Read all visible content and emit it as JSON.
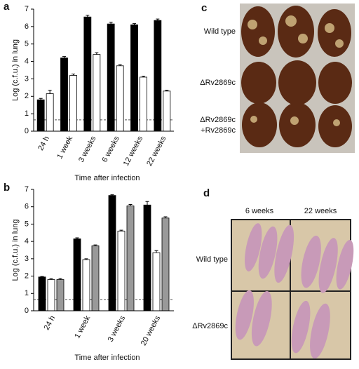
{
  "chart_data": [
    {
      "type": "bar",
      "panel": "a",
      "ylabel": "Log (c.f.u.) in lung",
      "xlabel": "Time after infection",
      "categories": [
        "24 h",
        "1 week",
        "3 weeks",
        "6 weeks",
        "12 weeks",
        "22 weeks"
      ],
      "series": [
        {
          "color": "#000000",
          "values": [
            1.8,
            4.2,
            6.55,
            6.15,
            6.1,
            6.35
          ],
          "errors": [
            0.08,
            0.08,
            0.1,
            0.1,
            0.07,
            0.08
          ]
        },
        {
          "color": "#ffffff",
          "values": [
            2.15,
            3.2,
            4.4,
            3.75,
            3.1,
            2.3
          ],
          "errors": [
            0.2,
            0.08,
            0.1,
            0.06,
            0.05,
            0.05
          ]
        }
      ],
      "threshold": 0.65,
      "ylim": [
        0,
        7
      ],
      "yticks": [
        0,
        1,
        2,
        3,
        4,
        5,
        6,
        7
      ]
    },
    {
      "type": "bar",
      "panel": "b",
      "ylabel": "Log (c.f.u.) in lung",
      "xlabel": "Time after infection",
      "categories": [
        "24 h",
        "1 week",
        "3 weeks",
        "20 weeks"
      ],
      "series": [
        {
          "color": "#000000",
          "values": [
            1.95,
            4.15,
            6.65,
            6.1
          ],
          "errors": [
            0.03,
            0.06,
            0.04,
            0.2
          ]
        },
        {
          "color": "#ffffff",
          "values": [
            1.8,
            2.95,
            4.6,
            3.35
          ],
          "errors": [
            0.05,
            0.05,
            0.05,
            0.12
          ]
        },
        {
          "color": "#999999",
          "values": [
            1.8,
            3.75,
            6.05,
            5.35
          ],
          "errors": [
            0.06,
            0.05,
            0.08,
            0.07
          ]
        }
      ],
      "threshold": 0.65,
      "ylim": [
        0,
        7
      ],
      "yticks": [
        0,
        1,
        2,
        3,
        4,
        5,
        6,
        7
      ]
    }
  ],
  "panel_c": {
    "label": "c",
    "rows": [
      "Wild type",
      "ΔRv2869c",
      "ΔRv2869c",
      "+Rv2869c"
    ]
  },
  "panel_d": {
    "label": "d",
    "columns": [
      "6 weeks",
      "22 weeks"
    ],
    "rows": [
      "Wild type",
      "ΔRv2869c"
    ]
  }
}
